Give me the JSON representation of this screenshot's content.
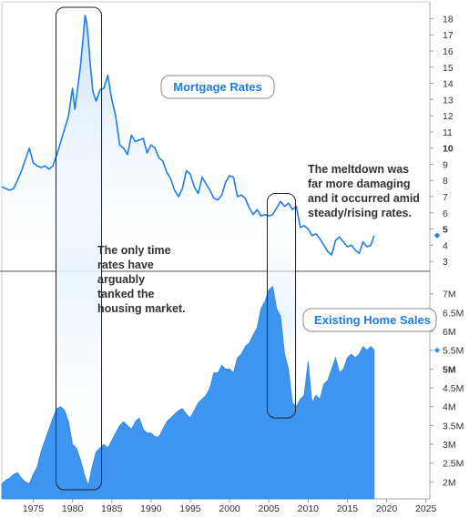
{
  "chart_data": [
    {
      "type": "line",
      "name": "Mortgage Rates",
      "legend_label": "Mortgage Rates",
      "x_range": [
        1971,
        2025.5
      ],
      "ylim": [
        2.5,
        18.7
      ],
      "y_ticks": [
        3,
        4,
        5,
        6,
        7,
        8,
        9,
        10,
        11,
        12,
        13,
        14,
        15,
        16,
        17,
        18
      ],
      "y_tick_labels": [
        "3",
        "4",
        "5",
        "6",
        "7",
        "8",
        "9",
        "10",
        "11",
        "12",
        "13",
        "14",
        "15",
        "16",
        "17",
        "18"
      ],
      "bold_y_ticks": [
        5,
        10
      ],
      "color": "#1e7ee6",
      "x": [
        1971.0,
        1971.5,
        1972.0,
        1972.5,
        1973.0,
        1973.5,
        1974.0,
        1974.5,
        1975.0,
        1975.5,
        1976.0,
        1976.5,
        1977.0,
        1977.5,
        1978.0,
        1978.5,
        1979.0,
        1979.5,
        1980.0,
        1980.3,
        1980.6,
        1981.0,
        1981.3,
        1981.6,
        1981.8,
        1982.0,
        1982.3,
        1982.6,
        1983.0,
        1983.5,
        1984.0,
        1984.5,
        1985.0,
        1985.5,
        1986.0,
        1986.5,
        1987.0,
        1987.5,
        1988.0,
        1988.5,
        1989.0,
        1989.5,
        1990.0,
        1990.5,
        1991.0,
        1991.5,
        1992.0,
        1992.5,
        1993.0,
        1993.5,
        1994.0,
        1994.5,
        1995.0,
        1995.5,
        1996.0,
        1996.5,
        1997.0,
        1997.5,
        1998.0,
        1998.5,
        1999.0,
        1999.5,
        2000.0,
        2000.5,
        2001.0,
        2001.5,
        2002.0,
        2002.5,
        2003.0,
        2003.5,
        2004.0,
        2004.5,
        2005.0,
        2005.5,
        2006.0,
        2006.5,
        2007.0,
        2007.5,
        2008.0,
        2008.5,
        2009.0,
        2009.5,
        2010.0,
        2010.5,
        2011.0,
        2011.5,
        2012.0,
        2012.5,
        2013.0,
        2013.5,
        2014.0,
        2014.5,
        2015.0,
        2015.5,
        2016.0,
        2016.5,
        2017.0,
        2017.5,
        2018.0,
        2018.4
      ],
      "y": [
        7.6,
        7.5,
        7.4,
        7.5,
        8.0,
        8.6,
        9.3,
        10.0,
        9.1,
        8.9,
        8.8,
        8.9,
        8.7,
        8.9,
        9.6,
        10.4,
        11.2,
        12.0,
        13.7,
        12.4,
        13.5,
        15.0,
        16.5,
        18.2,
        17.8,
        16.8,
        15.0,
        13.5,
        12.9,
        13.6,
        13.7,
        14.5,
        13.0,
        12.0,
        10.2,
        10.0,
        9.6,
        10.8,
        10.4,
        10.5,
        10.6,
        9.7,
        10.2,
        10.0,
        9.4,
        9.2,
        8.5,
        8.1,
        7.4,
        7.0,
        7.5,
        8.6,
        8.4,
        7.6,
        7.2,
        8.2,
        7.8,
        7.4,
        6.9,
        6.8,
        7.1,
        7.9,
        8.3,
        8.2,
        7.0,
        7.1,
        6.9,
        6.3,
        5.9,
        6.2,
        5.8,
        5.9,
        5.8,
        5.9,
        6.3,
        6.7,
        6.4,
        6.6,
        6.2,
        6.4,
        5.1,
        5.2,
        5.0,
        4.6,
        4.7,
        4.4,
        4.0,
        3.6,
        3.4,
        4.3,
        4.5,
        4.2,
        3.9,
        4.0,
        3.7,
        3.5,
        4.2,
        3.9,
        4.0,
        4.6
      ],
      "end_marker_value": 4.6
    },
    {
      "type": "area",
      "name": "Existing Home Sales",
      "legend_label": "Existing Home Sales",
      "ylim": [
        1.55,
        7.55
      ],
      "y_ticks": [
        2,
        2.5,
        3,
        3.5,
        4,
        4.5,
        5,
        5.5,
        6,
        6.5,
        7
      ],
      "y_tick_labels": [
        "2M",
        "2.5M",
        "3M",
        "3.5M",
        "4M",
        "4.5M",
        "5M",
        "5.5M",
        "6M",
        "6.5M",
        "7M"
      ],
      "bold_y_ticks": [
        5
      ],
      "color": "#3d95f0",
      "x": [
        1971.0,
        1971.5,
        1972.0,
        1972.5,
        1973.0,
        1973.5,
        1974.0,
        1974.5,
        1975.0,
        1975.5,
        1976.0,
        1976.5,
        1977.0,
        1977.5,
        1978.0,
        1978.5,
        1979.0,
        1979.5,
        1980.0,
        1980.5,
        1981.0,
        1981.5,
        1982.0,
        1982.5,
        1983.0,
        1983.5,
        1984.0,
        1984.5,
        1985.0,
        1985.5,
        1986.0,
        1986.5,
        1987.0,
        1987.5,
        1988.0,
        1988.5,
        1989.0,
        1989.5,
        1990.0,
        1990.5,
        1991.0,
        1991.5,
        1992.0,
        1992.5,
        1993.0,
        1993.5,
        1994.0,
        1994.5,
        1995.0,
        1995.5,
        1996.0,
        1996.5,
        1997.0,
        1997.5,
        1998.0,
        1998.5,
        1999.0,
        1999.5,
        2000.0,
        2000.5,
        2001.0,
        2001.5,
        2002.0,
        2002.5,
        2003.0,
        2003.5,
        2004.0,
        2004.5,
        2005.0,
        2005.5,
        2006.0,
        2006.5,
        2007.0,
        2007.5,
        2008.0,
        2008.5,
        2009.0,
        2009.5,
        2010.0,
        2010.5,
        2011.0,
        2011.5,
        2012.0,
        2012.5,
        2013.0,
        2013.5,
        2014.0,
        2014.5,
        2015.0,
        2015.5,
        2016.0,
        2016.5,
        2017.0,
        2017.5,
        2018.0,
        2018.4
      ],
      "y": [
        1.95,
        2.05,
        2.1,
        2.2,
        2.25,
        2.1,
        2.0,
        1.95,
        2.2,
        2.4,
        2.8,
        3.1,
        3.4,
        3.7,
        3.95,
        4.0,
        3.9,
        3.6,
        3.0,
        2.9,
        2.6,
        2.2,
        1.9,
        2.4,
        2.8,
        2.9,
        3.0,
        2.9,
        3.1,
        3.3,
        3.5,
        3.6,
        3.5,
        3.4,
        3.6,
        3.7,
        3.4,
        3.3,
        3.3,
        3.2,
        3.2,
        3.4,
        3.6,
        3.7,
        3.8,
        3.9,
        3.95,
        3.8,
        3.7,
        3.9,
        4.1,
        4.2,
        4.3,
        4.5,
        4.9,
        4.9,
        5.1,
        5.0,
        5.0,
        4.9,
        5.3,
        5.4,
        5.6,
        5.7,
        5.9,
        6.1,
        6.6,
        6.8,
        7.1,
        7.2,
        6.6,
        6.4,
        5.4,
        5.0,
        4.1,
        4.0,
        4.2,
        4.3,
        5.2,
        4.1,
        4.3,
        4.2,
        4.6,
        4.7,
        5.0,
        5.3,
        4.9,
        5.0,
        5.3,
        5.4,
        5.3,
        5.4,
        5.6,
        5.5,
        5.6,
        5.5
      ],
      "end_marker_value": 5.5
    }
  ],
  "x_axis": {
    "ticks": [
      1975,
      1980,
      1985,
      1990,
      1995,
      2000,
      2005,
      2010,
      2015,
      2020,
      2025
    ],
    "tick_labels": [
      "1975",
      "1980",
      "1985",
      "1990",
      "1995",
      "2000",
      "2005",
      "2010",
      "2015",
      "2020",
      "2025"
    ]
  },
  "highlights": [
    {
      "x_start": 1977.9,
      "x_end": 1983.7,
      "y_top": 18.7,
      "y_bottom": 1.55
    },
    {
      "x_start": 2004.8,
      "x_end": 2008.4,
      "y_top": 7.2,
      "y_bottom": 3.7
    }
  ],
  "annotations": {
    "left_note": [
      "The only time",
      "rates have",
      "arguably",
      "tanked the",
      "housing market."
    ],
    "right_note": [
      "The meltdown was",
      "far more damaging",
      "and it occurred amid",
      "steady/rising rates."
    ]
  }
}
